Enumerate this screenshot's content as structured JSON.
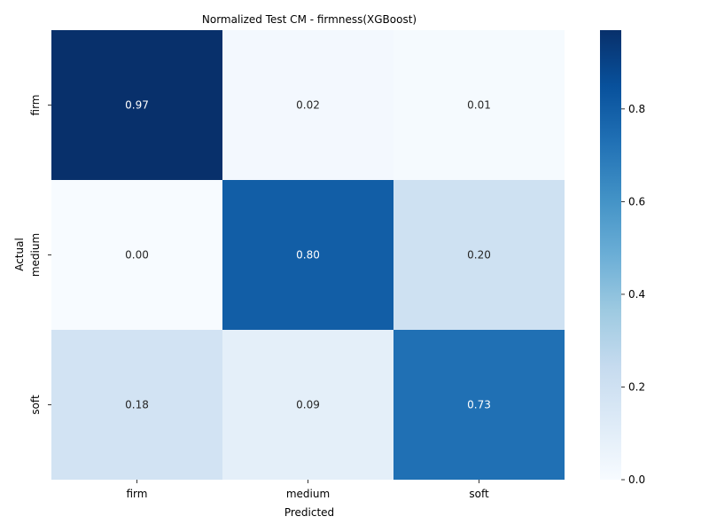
{
  "chart_data": {
    "type": "heatmap",
    "title": "Normalized Test CM - firmness(XGBoost)",
    "xlabel": "Predicted",
    "ylabel": "Actual",
    "x_categories": [
      "firm",
      "medium",
      "soft"
    ],
    "y_categories": [
      "firm",
      "medium",
      "soft"
    ],
    "values": [
      [
        0.97,
        0.02,
        0.01
      ],
      [
        0.0,
        0.8,
        0.2
      ],
      [
        0.18,
        0.09,
        0.73
      ]
    ],
    "value_labels": [
      [
        "0.97",
        "0.02",
        "0.01"
      ],
      [
        "0.00",
        "0.80",
        "0.20"
      ],
      [
        "0.18",
        "0.09",
        "0.73"
      ]
    ],
    "colormap": "Blues",
    "colorbar": {
      "range": [
        0,
        0.97
      ],
      "ticks": [
        0.0,
        0.2,
        0.4,
        0.6,
        0.8
      ],
      "tick_labels": [
        "0.0",
        "0.2",
        "0.4",
        "0.6",
        "0.8"
      ]
    },
    "grid": false
  }
}
